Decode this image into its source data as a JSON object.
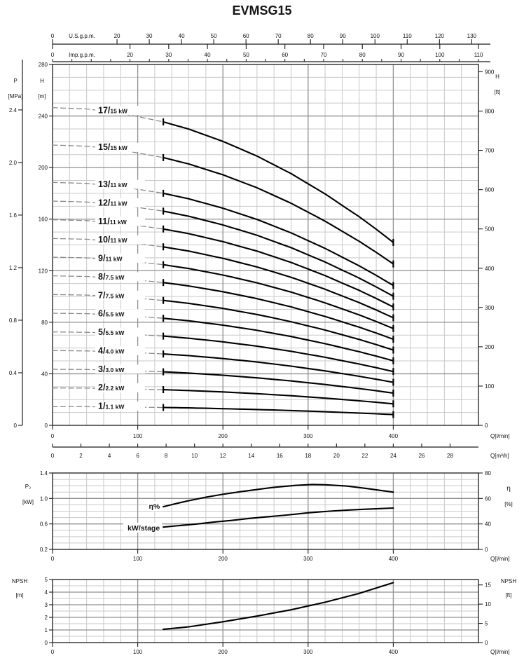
{
  "title": "EVMSG15",
  "colors": {
    "curve": "#000000",
    "dash_guide": "#8a8a8a",
    "grid_minor": "#c9c9c9",
    "grid_major": "#8f8f8f",
    "border": "#2b2b2b",
    "axis_line": "#1a1a1a",
    "text": "#141414",
    "background": "#ffffff"
  },
  "chart_data": [
    {
      "type": "line",
      "name": "head-flow-curves",
      "x_axis": {
        "label": "Q[l/min]",
        "ticks": [
          0,
          100,
          200,
          300,
          400
        ],
        "max": 500,
        "minor_step": 20
      },
      "x_axis_m3h": {
        "label": "Q[m³/h]",
        "ticks": [
          0,
          2,
          4,
          6,
          8,
          10,
          12,
          14,
          16,
          18,
          20,
          22,
          24,
          26,
          28
        ],
        "lpm_per_unit": 16.6667
      },
      "top_scales": {
        "us_gpm": {
          "label": "U.S.g.p.m.",
          "ticks": [
            0,
            20,
            30,
            40,
            50,
            60,
            70,
            80,
            90,
            100,
            110,
            120,
            130
          ],
          "lpm_per_unit": 3.785
        },
        "imp_gpm": {
          "label": "Imp.g.p.m.",
          "ticks": [
            0,
            20,
            30,
            40,
            50,
            60,
            70,
            80,
            90,
            100,
            110
          ],
          "lpm_per_unit": 4.546,
          "minor_tick_step": 5
        }
      },
      "y_left": {
        "label": "H",
        "unit": "[m]",
        "min": 0,
        "max": 280,
        "major_tick_step": 40,
        "minor_step": 10
      },
      "y_left_pressure": {
        "label": "P",
        "unit": "[MPa]",
        "tick_labels": [
          "0",
          "0.4",
          "0.8",
          "1.2",
          "1.6",
          "2.0",
          "2.4"
        ],
        "meters_per_mpa": 101.97
      },
      "y_right": {
        "label": "H",
        "unit": "[ft]",
        "ticks": [
          0,
          100,
          200,
          300,
          400,
          500,
          600,
          700,
          800,
          900
        ],
        "meters_per_ft": 0.3048
      },
      "solid_q_range": [
        130,
        400
      ],
      "per_stage_head": {
        "q_lpm": [
          0,
          40,
          80,
          130,
          160,
          200,
          240,
          280,
          320,
          360,
          380,
          400
        ],
        "h_m": [
          14.5,
          14.44,
          14.25,
          13.85,
          13.52,
          12.96,
          12.29,
          11.49,
          10.56,
          9.52,
          8.95,
          8.35
        ]
      },
      "curves": [
        {
          "stages": 17,
          "label": "17/",
          "power_label": "15 kW"
        },
        {
          "stages": 15,
          "label": "15/",
          "power_label": "15 kW"
        },
        {
          "stages": 13,
          "label": "13/",
          "power_label": "11 kW"
        },
        {
          "stages": 12,
          "label": "12/",
          "power_label": "11 kW"
        },
        {
          "stages": 11,
          "label": "11/",
          "power_label": "11 kW"
        },
        {
          "stages": 10,
          "label": "10/",
          "power_label": "11 kW"
        },
        {
          "stages": 9,
          "label": "9/",
          "power_label": "11 kW"
        },
        {
          "stages": 8,
          "label": "8/",
          "power_label": "7.5 kW"
        },
        {
          "stages": 7,
          "label": "7/",
          "power_label": "7.5 kW"
        },
        {
          "stages": 6,
          "label": "6/",
          "power_label": "5.5 kW"
        },
        {
          "stages": 5,
          "label": "5/",
          "power_label": "5.5 kW"
        },
        {
          "stages": 4,
          "label": "4/",
          "power_label": "4.0 kW"
        },
        {
          "stages": 3,
          "label": "3/",
          "power_label": "3.0 kW"
        },
        {
          "stages": 2,
          "label": "2/",
          "power_label": "2.2 kW"
        },
        {
          "stages": 1,
          "label": "1/",
          "power_label": "1.1 kW"
        }
      ]
    },
    {
      "type": "line",
      "name": "power-and-efficiency",
      "x_axis": {
        "label": "Q[l/min]",
        "ticks": [
          0,
          100,
          200,
          300,
          400
        ],
        "max": 500,
        "minor_step": 20
      },
      "y_left": {
        "label": "P₂",
        "unit": "[kW]",
        "min": 0.2,
        "max": 1.4,
        "tick_labels": [
          "0.2",
          "0.6",
          "1.0",
          "1.4"
        ],
        "major_values": [
          0.2,
          0.6,
          1.0,
          1.4
        ],
        "minor_step": 0.1
      },
      "y_right": {
        "label": "η",
        "unit": "[%]",
        "tick_labels": [
          "80",
          "60",
          "40",
          "0"
        ],
        "at_left_values": [
          1.4,
          1.0,
          0.6,
          0.2
        ]
      },
      "series": [
        {
          "name": "η%",
          "label_anchor": {
            "q": 126,
            "v": 0.875
          },
          "points": [
            [
              130,
              0.87
            ],
            [
              145,
              0.92
            ],
            [
              160,
              0.965
            ],
            [
              180,
              1.02
            ],
            [
              200,
              1.065
            ],
            [
              220,
              1.105
            ],
            [
              240,
              1.14
            ],
            [
              260,
              1.175
            ],
            [
              285,
              1.205
            ],
            [
              305,
              1.22
            ],
            [
              320,
              1.215
            ],
            [
              345,
              1.195
            ],
            [
              370,
              1.155
            ],
            [
              400,
              1.1
            ]
          ]
        },
        {
          "name": "kW/stage",
          "label_anchor": {
            "q": 126,
            "v": 0.535
          },
          "points": [
            [
              130,
              0.55
            ],
            [
              150,
              0.575
            ],
            [
              170,
              0.6
            ],
            [
              190,
              0.63
            ],
            [
              210,
              0.655
            ],
            [
              230,
              0.685
            ],
            [
              250,
              0.71
            ],
            [
              275,
              0.74
            ],
            [
              300,
              0.775
            ],
            [
              325,
              0.8
            ],
            [
              350,
              0.82
            ],
            [
              375,
              0.835
            ],
            [
              400,
              0.85
            ]
          ]
        }
      ]
    },
    {
      "type": "line",
      "name": "npsh",
      "x_axis": {
        "label": "Q[l/min]",
        "ticks": [
          0,
          100,
          200,
          300,
          400
        ],
        "max": 500,
        "minor_step": 20
      },
      "y_left": {
        "label": "NPSH",
        "unit": "[m]",
        "min": 0,
        "max": 5,
        "major_tick_step": 1,
        "minor_step": 0.5
      },
      "y_right": {
        "label": "NPSH",
        "unit": "[ft]",
        "ticks": [
          0,
          5,
          10,
          15
        ],
        "meters_per_ft": 0.3048
      },
      "series": [
        {
          "name": "NPSH",
          "points": [
            [
              130,
              1.05
            ],
            [
              160,
              1.25
            ],
            [
              200,
              1.65
            ],
            [
              240,
              2.1
            ],
            [
              280,
              2.6
            ],
            [
              320,
              3.2
            ],
            [
              360,
              3.9
            ],
            [
              400,
              4.75
            ]
          ]
        }
      ]
    }
  ]
}
